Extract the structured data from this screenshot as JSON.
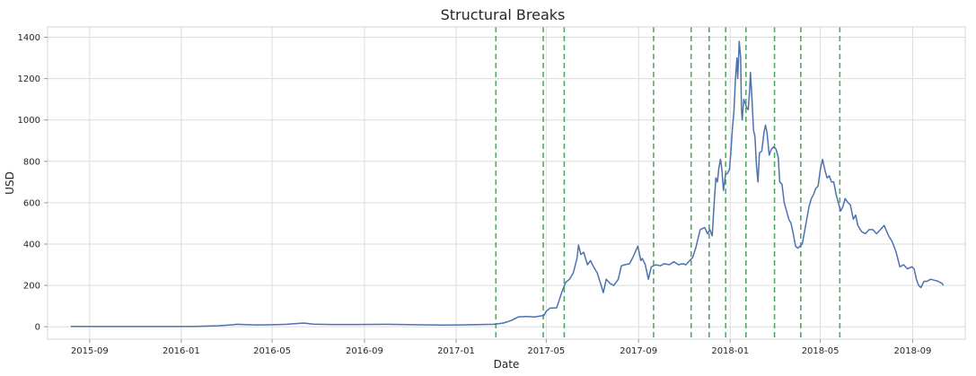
{
  "chart_data": {
    "type": "line",
    "title": "Structural Breaks",
    "xlabel": "Date",
    "ylabel": "USD",
    "x_axis_kind": "date",
    "xlim": [
      "2015-07-07",
      "2018-11-10"
    ],
    "ylim": [
      -60,
      1450
    ],
    "grid": true,
    "y_ticks": [
      0,
      200,
      400,
      600,
      800,
      1000,
      1200,
      1400
    ],
    "x_ticks": [
      {
        "date": "2015-09-01",
        "label": "2015-09"
      },
      {
        "date": "2016-01-01",
        "label": "2016-01"
      },
      {
        "date": "2016-05-01",
        "label": "2016-05"
      },
      {
        "date": "2016-09-01",
        "label": "2016-09"
      },
      {
        "date": "2017-01-01",
        "label": "2017-01"
      },
      {
        "date": "2017-05-01",
        "label": "2017-05"
      },
      {
        "date": "2017-09-01",
        "label": "2017-09"
      },
      {
        "date": "2018-01-01",
        "label": "2018-01"
      },
      {
        "date": "2018-05-01",
        "label": "2018-05"
      },
      {
        "date": "2018-09-01",
        "label": "2018-09"
      }
    ],
    "colors": {
      "line": "#4c72b0",
      "breaks": "#55a868",
      "grid": "#dcdcdc"
    },
    "breaks": [
      "2017-02-23",
      "2017-04-27",
      "2017-05-25",
      "2017-09-21",
      "2017-11-10",
      "2017-12-04",
      "2017-12-26",
      "2018-01-22",
      "2018-03-01",
      "2018-04-05",
      "2018-05-27"
    ],
    "series": [
      {
        "points": [
          [
            "2015-08-07",
            2
          ],
          [
            "2015-09-15",
            1
          ],
          [
            "2015-11-01",
            1
          ],
          [
            "2015-12-15",
            1
          ],
          [
            "2016-01-20",
            2
          ],
          [
            "2016-02-20",
            5
          ],
          [
            "2016-03-10",
            10
          ],
          [
            "2016-03-15",
            12
          ],
          [
            "2016-04-10",
            9
          ],
          [
            "2016-05-01",
            10
          ],
          [
            "2016-05-20",
            12
          ],
          [
            "2016-06-12",
            18
          ],
          [
            "2016-06-25",
            13
          ],
          [
            "2016-07-20",
            11
          ],
          [
            "2016-08-20",
            11
          ],
          [
            "2016-10-01",
            12
          ],
          [
            "2016-11-10",
            10
          ],
          [
            "2016-12-15",
            8
          ],
          [
            "2017-01-20",
            10
          ],
          [
            "2017-02-20",
            12
          ],
          [
            "2017-03-05",
            18
          ],
          [
            "2017-03-15",
            30
          ],
          [
            "2017-03-25",
            48
          ],
          [
            "2017-04-05",
            50
          ],
          [
            "2017-04-15",
            47
          ],
          [
            "2017-04-28",
            55
          ],
          [
            "2017-05-01",
            75
          ],
          [
            "2017-05-06",
            90
          ],
          [
            "2017-05-15",
            92
          ],
          [
            "2017-05-22",
            170
          ],
          [
            "2017-05-27",
            215
          ],
          [
            "2017-06-01",
            230
          ],
          [
            "2017-06-06",
            260
          ],
          [
            "2017-06-11",
            330
          ],
          [
            "2017-06-13",
            395
          ],
          [
            "2017-06-16",
            350
          ],
          [
            "2017-06-20",
            360
          ],
          [
            "2017-06-25",
            300
          ],
          [
            "2017-06-29",
            320
          ],
          [
            "2017-07-03",
            290
          ],
          [
            "2017-07-08",
            260
          ],
          [
            "2017-07-12",
            215
          ],
          [
            "2017-07-16",
            165
          ],
          [
            "2017-07-20",
            230
          ],
          [
            "2017-07-25",
            210
          ],
          [
            "2017-07-30",
            200
          ],
          [
            "2017-08-05",
            230
          ],
          [
            "2017-08-09",
            295
          ],
          [
            "2017-08-14",
            300
          ],
          [
            "2017-08-20",
            305
          ],
          [
            "2017-08-25",
            340
          ],
          [
            "2017-08-31",
            390
          ],
          [
            "2017-09-04",
            320
          ],
          [
            "2017-09-06",
            330
          ],
          [
            "2017-09-10",
            300
          ],
          [
            "2017-09-14",
            230
          ],
          [
            "2017-09-18",
            290
          ],
          [
            "2017-09-24",
            300
          ],
          [
            "2017-09-30",
            295
          ],
          [
            "2017-10-05",
            305
          ],
          [
            "2017-10-12",
            300
          ],
          [
            "2017-10-18",
            315
          ],
          [
            "2017-10-24",
            300
          ],
          [
            "2017-10-30",
            305
          ],
          [
            "2017-11-03",
            300
          ],
          [
            "2017-11-08",
            320
          ],
          [
            "2017-11-12",
            335
          ],
          [
            "2017-11-16",
            380
          ],
          [
            "2017-11-22",
            470
          ],
          [
            "2017-11-28",
            480
          ],
          [
            "2017-12-02",
            450
          ],
          [
            "2017-12-05",
            470
          ],
          [
            "2017-12-08",
            440
          ],
          [
            "2017-12-11",
            620
          ],
          [
            "2017-12-13",
            720
          ],
          [
            "2017-12-15",
            700
          ],
          [
            "2017-12-17",
            770
          ],
          [
            "2017-12-19",
            810
          ],
          [
            "2017-12-21",
            760
          ],
          [
            "2017-12-23",
            660
          ],
          [
            "2017-12-26",
            740
          ],
          [
            "2017-12-28",
            740
          ],
          [
            "2017-12-31",
            760
          ],
          [
            "2018-01-02",
            850
          ],
          [
            "2018-01-04",
            960
          ],
          [
            "2018-01-06",
            1040
          ],
          [
            "2018-01-08",
            1200
          ],
          [
            "2018-01-10",
            1300
          ],
          [
            "2018-01-11",
            1200
          ],
          [
            "2018-01-12",
            1280
          ],
          [
            "2018-01-13",
            1380
          ],
          [
            "2018-01-15",
            1300
          ],
          [
            "2018-01-16",
            1050
          ],
          [
            "2018-01-17",
            1000
          ],
          [
            "2018-01-19",
            1100
          ],
          [
            "2018-01-21",
            1080
          ],
          [
            "2018-01-23",
            1060
          ],
          [
            "2018-01-25",
            1050
          ],
          [
            "2018-01-27",
            1150
          ],
          [
            "2018-01-28",
            1230
          ],
          [
            "2018-01-30",
            1100
          ],
          [
            "2018-02-01",
            950
          ],
          [
            "2018-02-03",
            920
          ],
          [
            "2018-02-05",
            780
          ],
          [
            "2018-02-07",
            700
          ],
          [
            "2018-02-09",
            840
          ],
          [
            "2018-02-12",
            850
          ],
          [
            "2018-02-15",
            940
          ],
          [
            "2018-02-17",
            975
          ],
          [
            "2018-02-19",
            940
          ],
          [
            "2018-02-22",
            830
          ],
          [
            "2018-02-25",
            860
          ],
          [
            "2018-02-28",
            870
          ],
          [
            "2018-03-03",
            860
          ],
          [
            "2018-03-06",
            820
          ],
          [
            "2018-03-08",
            700
          ],
          [
            "2018-03-11",
            690
          ],
          [
            "2018-03-14",
            600
          ],
          [
            "2018-03-17",
            560
          ],
          [
            "2018-03-20",
            520
          ],
          [
            "2018-03-23",
            500
          ],
          [
            "2018-03-26",
            450
          ],
          [
            "2018-03-29",
            390
          ],
          [
            "2018-04-01",
            380
          ],
          [
            "2018-04-04",
            390
          ],
          [
            "2018-04-07",
            400
          ],
          [
            "2018-04-10",
            460
          ],
          [
            "2018-04-13",
            520
          ],
          [
            "2018-04-16",
            580
          ],
          [
            "2018-04-19",
            620
          ],
          [
            "2018-04-22",
            640
          ],
          [
            "2018-04-25",
            670
          ],
          [
            "2018-04-28",
            680
          ],
          [
            "2018-05-01",
            760
          ],
          [
            "2018-05-04",
            810
          ],
          [
            "2018-05-07",
            760
          ],
          [
            "2018-05-10",
            720
          ],
          [
            "2018-05-13",
            730
          ],
          [
            "2018-05-16",
            700
          ],
          [
            "2018-05-19",
            700
          ],
          [
            "2018-05-22",
            640
          ],
          [
            "2018-05-25",
            600
          ],
          [
            "2018-05-28",
            560
          ],
          [
            "2018-05-31",
            580
          ],
          [
            "2018-06-03",
            620
          ],
          [
            "2018-06-07",
            600
          ],
          [
            "2018-06-10",
            590
          ],
          [
            "2018-06-14",
            520
          ],
          [
            "2018-06-17",
            540
          ],
          [
            "2018-06-20",
            490
          ],
          [
            "2018-06-25",
            460
          ],
          [
            "2018-06-30",
            450
          ],
          [
            "2018-07-05",
            470
          ],
          [
            "2018-07-10",
            470
          ],
          [
            "2018-07-15",
            450
          ],
          [
            "2018-07-20",
            470
          ],
          [
            "2018-07-25",
            490
          ],
          [
            "2018-07-31",
            440
          ],
          [
            "2018-08-05",
            410
          ],
          [
            "2018-08-10",
            360
          ],
          [
            "2018-08-15",
            290
          ],
          [
            "2018-08-20",
            300
          ],
          [
            "2018-08-25",
            280
          ],
          [
            "2018-08-31",
            290
          ],
          [
            "2018-09-03",
            280
          ],
          [
            "2018-09-06",
            230
          ],
          [
            "2018-09-09",
            200
          ],
          [
            "2018-09-12",
            190
          ],
          [
            "2018-09-16",
            220
          ],
          [
            "2018-09-20",
            220
          ],
          [
            "2018-09-25",
            230
          ],
          [
            "2018-09-30",
            225
          ],
          [
            "2018-10-05",
            220
          ],
          [
            "2018-10-10",
            210
          ],
          [
            "2018-10-12",
            200
          ]
        ]
      }
    ]
  }
}
